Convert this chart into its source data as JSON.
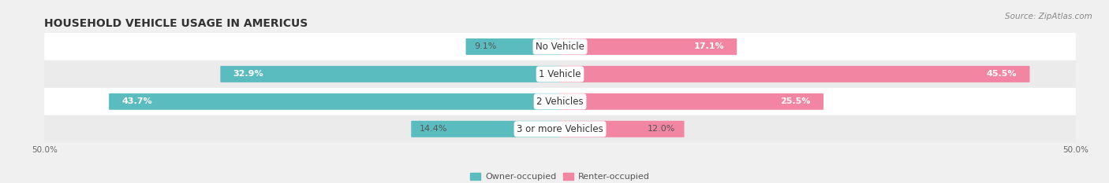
{
  "title": "HOUSEHOLD VEHICLE USAGE IN AMERICUS",
  "source": "Source: ZipAtlas.com",
  "categories": [
    "No Vehicle",
    "1 Vehicle",
    "2 Vehicles",
    "3 or more Vehicles"
  ],
  "owner_values": [
    9.1,
    32.9,
    43.7,
    14.4
  ],
  "renter_values": [
    17.1,
    45.5,
    25.5,
    12.0
  ],
  "owner_color": "#5bbcbf",
  "renter_color": "#f285a2",
  "axis_limit": 50.0,
  "background_color": "#f0f0f0",
  "row_colors": [
    "#ffffff",
    "#ebebeb",
    "#ffffff",
    "#ebebeb"
  ],
  "title_fontsize": 10,
  "source_fontsize": 7.5,
  "label_fontsize": 8,
  "cat_fontsize": 8.5,
  "tick_fontsize": 7.5,
  "legend_fontsize": 8
}
